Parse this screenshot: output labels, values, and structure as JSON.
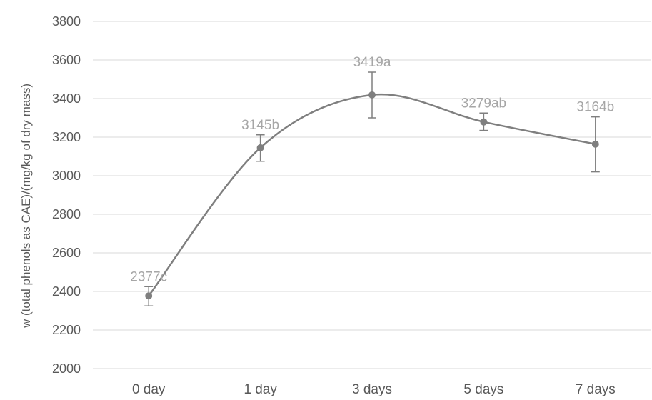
{
  "chart_data": {
    "type": "line",
    "title": "",
    "xlabel": "",
    "ylabel": "w (total phenols as CAE)/(mg/kg of dry mass)",
    "categories": [
      "0 day",
      "1 day",
      "3 days",
      "5 days",
      "7 days"
    ],
    "ylim": [
      2000,
      3800
    ],
    "yticks": [
      2000,
      2200,
      2400,
      2600,
      2800,
      3000,
      3200,
      3400,
      3600,
      3800
    ],
    "ytick_labels": [
      "2000",
      "2200",
      "2400",
      "2600",
      "2800",
      "3000",
      "3200",
      "3400",
      "3600",
      "3800"
    ],
    "series": [
      {
        "values": [
          2377,
          3145,
          3419,
          3279,
          3164
        ],
        "error_low": [
          2325,
          3075,
          3300,
          3235,
          3020
        ],
        "error_high": [
          2425,
          3212,
          3537,
          3325,
          3305
        ],
        "data_labels": [
          "2377c",
          "3145b",
          "3419a",
          "3279ab",
          "3164b"
        ],
        "smooth": true
      }
    ],
    "grid": "horizontal",
    "legend": "none",
    "colors": {
      "line": "#7f7f7f",
      "label": "#a6a6a6",
      "axis_text": "#595959",
      "grid": "#d9d9d9",
      "error_bar": "#7f7f7f"
    }
  }
}
